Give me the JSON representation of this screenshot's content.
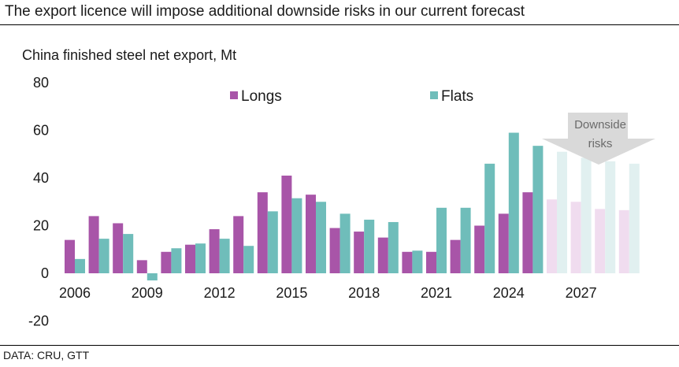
{
  "header": {
    "title": "The export licence will impose additional downside risks in our current forecast",
    "source": "DATA: CRU, GTT"
  },
  "colors": {
    "longs": "#a855a8",
    "flats": "#6fbdba",
    "longs_forecast": "#f0dcef",
    "flats_forecast": "#e1f0f0",
    "arrow": "#d9d9d9"
  },
  "chart_data": {
    "type": "bar",
    "title": "China finished steel net export, Mt",
    "xlabel": "",
    "ylabel": "",
    "ylim": [
      -20,
      80
    ],
    "yticks": [
      80,
      60,
      40,
      20,
      0,
      -20
    ],
    "categories": [
      "2006",
      "2007",
      "2008",
      "2009",
      "2010",
      "2011",
      "2012",
      "2013",
      "2014",
      "2015",
      "2016",
      "2017",
      "2018",
      "2019",
      "2020",
      "2021",
      "2022",
      "2023",
      "2024",
      "2025",
      "2026",
      "2027",
      "2028",
      "2029"
    ],
    "xtick_labels": [
      "2006",
      "2009",
      "2012",
      "2015",
      "2018",
      "2021",
      "2024",
      "2027"
    ],
    "forecast_start": "2026",
    "series": [
      {
        "name": "Longs",
        "values": [
          14,
          24,
          21,
          5.5,
          9,
          12,
          18.5,
          24,
          34,
          41,
          33,
          19,
          17.5,
          15,
          9,
          9,
          14,
          20,
          25,
          34,
          31,
          30,
          27,
          26.5
        ]
      },
      {
        "name": "Flats",
        "values": [
          6,
          14.5,
          16.5,
          -3,
          10.5,
          12.5,
          14.5,
          11.5,
          26,
          31.5,
          30,
          25,
          22.5,
          21.5,
          9.5,
          27.5,
          27.5,
          46,
          59,
          53.5,
          51,
          48.5,
          47,
          46
        ]
      }
    ],
    "annotations": [
      {
        "text_lines": [
          "Downside",
          "risks"
        ]
      }
    ]
  }
}
